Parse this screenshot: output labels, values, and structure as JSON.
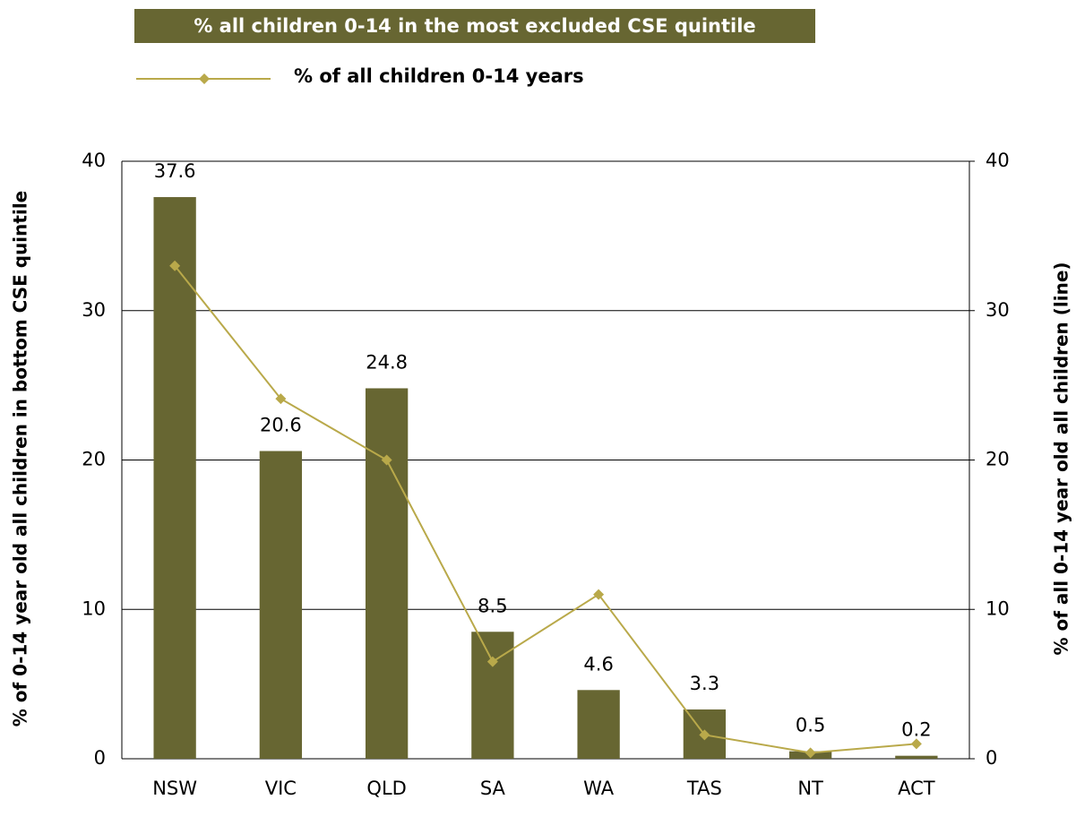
{
  "chart_data": {
    "type": "bar",
    "categories": [
      "NSW",
      "VIC",
      "QLD",
      "SA",
      "WA",
      "TAS",
      "NT",
      "ACT"
    ],
    "series": [
      {
        "name": "% all children 0-14 in the most excluded CSE quintile",
        "type": "bar",
        "color": "#676632",
        "values": [
          37.6,
          20.6,
          24.8,
          8.5,
          4.6,
          3.3,
          0.5,
          0.2
        ]
      },
      {
        "name": "% of all children 0-14 years",
        "type": "line",
        "axis": "y2",
        "color": "#b9a94a",
        "values": [
          33.0,
          24.1,
          20.0,
          6.5,
          11.0,
          1.6,
          0.4,
          1.0
        ]
      }
    ],
    "ylabel": "% of 0-14 year old all children in bottom CSE quintile",
    "y2label": "% of all 0-14 year old all children (line)",
    "ylim": [
      0,
      40
    ],
    "yticks": [
      0,
      10,
      20,
      30,
      40
    ],
    "y2lim": [
      0,
      40
    ],
    "y2ticks": [
      0,
      10,
      20,
      30,
      40
    ],
    "grid": true,
    "legend": "top"
  }
}
